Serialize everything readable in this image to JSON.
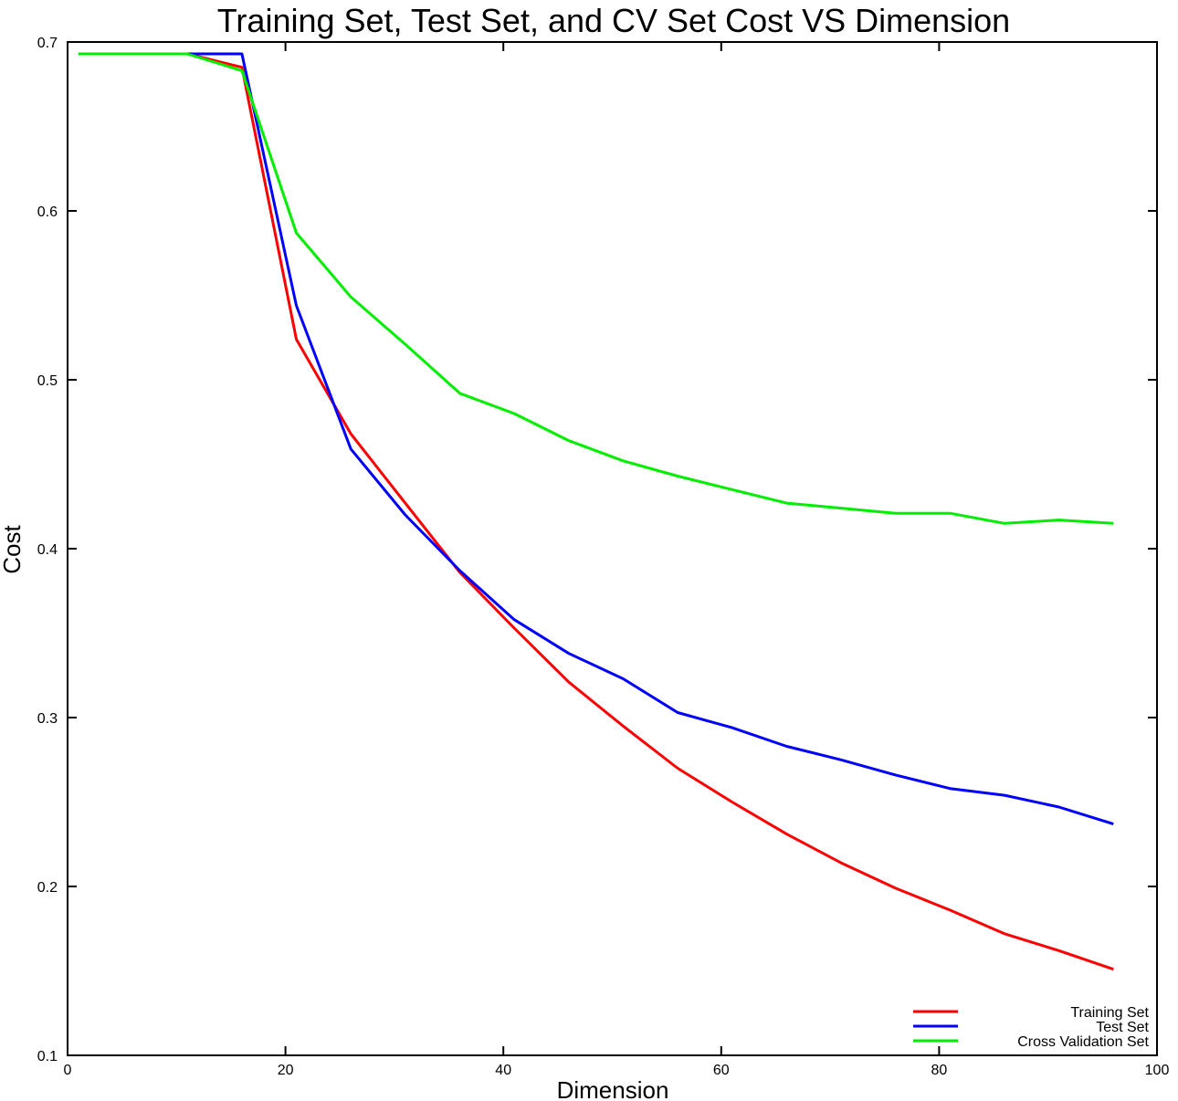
{
  "chart_data": {
    "type": "line",
    "title": "Training Set, Test Set, and CV Set Cost VS Dimension",
    "xlabel": "Dimension",
    "ylabel": "Cost",
    "xlim": [
      0,
      100
    ],
    "ylim": [
      0.1,
      0.7
    ],
    "xticks": [
      0,
      20,
      40,
      60,
      80,
      100
    ],
    "xtick_labels": [
      "0",
      "20",
      "40",
      "60",
      "80",
      "100"
    ],
    "yticks": [
      0.1,
      0.2,
      0.3,
      0.4,
      0.5,
      0.6,
      0.7
    ],
    "ytick_labels": [
      "0.1",
      "0.2",
      "0.3",
      "0.4",
      "0.5",
      "0.6",
      "0.7"
    ],
    "grid": false,
    "legend_position": "bottom-right",
    "x": [
      1,
      6,
      11,
      16,
      21,
      26,
      31,
      36,
      41,
      46,
      51,
      56,
      61,
      66,
      71,
      76,
      81,
      86,
      91,
      96
    ],
    "series": [
      {
        "name": "Training Set",
        "color": "#ff0000",
        "values": [
          0.693,
          0.693,
          0.693,
          0.685,
          0.524,
          0.468,
          0.427,
          0.386,
          0.353,
          0.321,
          0.295,
          0.27,
          0.25,
          0.231,
          0.214,
          0.199,
          0.186,
          0.172,
          0.162,
          0.151
        ]
      },
      {
        "name": "Test Set",
        "color": "#0000ff",
        "values": [
          0.693,
          0.693,
          0.693,
          0.693,
          0.544,
          0.459,
          0.42,
          0.387,
          0.358,
          0.338,
          0.323,
          0.303,
          0.294,
          0.283,
          0.275,
          0.266,
          0.258,
          0.254,
          0.247,
          0.237
        ]
      },
      {
        "name": "Cross Validation Set",
        "color": "#00ee00",
        "values": [
          0.693,
          0.693,
          0.693,
          0.683,
          0.587,
          0.549,
          0.521,
          0.492,
          0.48,
          0.464,
          0.452,
          0.443,
          0.435,
          0.427,
          0.424,
          0.421,
          0.421,
          0.415,
          0.417,
          0.415
        ]
      }
    ]
  }
}
